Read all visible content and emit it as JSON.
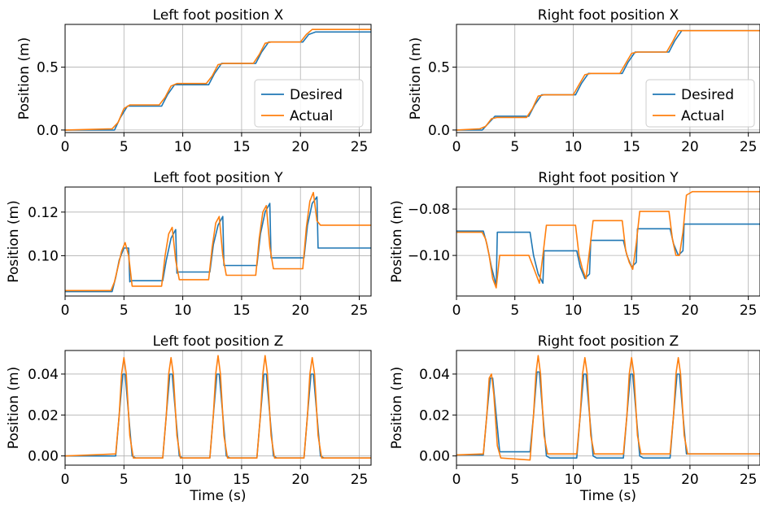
{
  "figure": {
    "series_names": [
      "Desired",
      "Actual"
    ],
    "series_colors": [
      "#1f77b4",
      "#ff7f0e"
    ]
  },
  "chart_data": [
    {
      "type": "line",
      "title": "Left foot position X",
      "ylabel": "Position (m)",
      "xlabel": "",
      "xlim": [
        0,
        26
      ],
      "ylim": [
        -0.02,
        0.84
      ],
      "xticks": [
        "0",
        "5",
        "10",
        "15",
        "20",
        "25"
      ],
      "xtick_values": [
        0,
        5,
        10,
        15,
        20,
        25
      ],
      "yticks": [
        "0.0",
        "0.5"
      ],
      "ytick_values": [
        0.0,
        0.5
      ],
      "grid": true,
      "legend": "center-right",
      "series": [
        {
          "name": "Desired",
          "color": "#1f77b4",
          "x": [
            0,
            4.2,
            4.7,
            5.3,
            8.2,
            8.7,
            9.3,
            12.2,
            12.7,
            13.3,
            16.2,
            16.7,
            17.3,
            20.2,
            20.7,
            21.3,
            26
          ],
          "y": [
            0,
            0,
            0.1,
            0.19,
            0.19,
            0.28,
            0.36,
            0.36,
            0.45,
            0.53,
            0.53,
            0.62,
            0.7,
            0.7,
            0.76,
            0.78,
            0.78
          ]
        },
        {
          "name": "Actual",
          "color": "#ff7f0e",
          "x": [
            0,
            4.0,
            4.5,
            5.0,
            5.5,
            8.0,
            8.5,
            9.0,
            9.5,
            12.0,
            12.5,
            13.0,
            13.5,
            16.0,
            16.5,
            17.0,
            17.5,
            20.0,
            20.5,
            21.0,
            21.5,
            26
          ],
          "y": [
            0,
            0.01,
            0.06,
            0.17,
            0.2,
            0.2,
            0.26,
            0.35,
            0.37,
            0.37,
            0.43,
            0.52,
            0.53,
            0.53,
            0.6,
            0.69,
            0.7,
            0.7,
            0.76,
            0.8,
            0.8,
            0.8
          ]
        }
      ]
    },
    {
      "type": "line",
      "title": "Right foot position X",
      "ylabel": "Position (m)",
      "xlabel": "",
      "xlim": [
        0,
        26
      ],
      "ylim": [
        -0.02,
        0.84
      ],
      "xticks": [
        "0",
        "5",
        "10",
        "15",
        "20",
        "25"
      ],
      "xtick_values": [
        0,
        5,
        10,
        15,
        20,
        25
      ],
      "yticks": [
        "0.0",
        "0.5"
      ],
      "ytick_values": [
        0.0,
        0.5
      ],
      "grid": true,
      "legend": "center-right",
      "series": [
        {
          "name": "Desired",
          "color": "#1f77b4",
          "x": [
            0,
            2.2,
            2.7,
            3.3,
            6.2,
            6.7,
            7.3,
            10.2,
            10.7,
            11.3,
            14.2,
            14.7,
            15.3,
            18.2,
            18.7,
            19.3,
            26
          ],
          "y": [
            0,
            0,
            0.05,
            0.11,
            0.11,
            0.2,
            0.28,
            0.28,
            0.37,
            0.45,
            0.45,
            0.54,
            0.62,
            0.62,
            0.71,
            0.79,
            0.79
          ]
        },
        {
          "name": "Actual",
          "color": "#ff7f0e",
          "x": [
            0,
            2.0,
            2.5,
            3.0,
            3.5,
            6.0,
            6.5,
            7.0,
            7.5,
            10.0,
            10.5,
            11.0,
            11.5,
            14.0,
            14.5,
            15.0,
            15.5,
            18.0,
            18.5,
            19.0,
            19.5,
            26
          ],
          "y": [
            0,
            0.01,
            0.03,
            0.09,
            0.1,
            0.1,
            0.17,
            0.27,
            0.28,
            0.28,
            0.36,
            0.44,
            0.45,
            0.45,
            0.53,
            0.61,
            0.62,
            0.62,
            0.7,
            0.79,
            0.79,
            0.79
          ]
        }
      ]
    },
    {
      "type": "line",
      "title": "Left foot position Y",
      "ylabel": "Position (m)",
      "xlabel": "",
      "xlim": [
        0,
        26
      ],
      "ylim": [
        0.0815,
        0.1315
      ],
      "xticks": [
        "0",
        "5",
        "10",
        "15",
        "20",
        "25"
      ],
      "xtick_values": [
        0,
        5,
        10,
        15,
        20,
        25
      ],
      "yticks": [
        "0.10",
        "0.12"
      ],
      "ytick_values": [
        0.1,
        0.12
      ],
      "grid": true,
      "legend": "none",
      "series": [
        {
          "name": "Desired",
          "color": "#1f77b4",
          "x": [
            0,
            4.0,
            4.3,
            4.6,
            5.0,
            5.4,
            5.5,
            5.6,
            8.3,
            8.6,
            9.0,
            9.4,
            9.5,
            9.6,
            12.3,
            12.6,
            13.0,
            13.4,
            13.5,
            13.6,
            16.3,
            16.6,
            17.0,
            17.4,
            17.5,
            17.6,
            20.3,
            20.6,
            21.0,
            21.4,
            21.5,
            21.6,
            26
          ],
          "y": [
            0.0835,
            0.0835,
            0.09,
            0.098,
            0.1035,
            0.1035,
            0.088,
            0.0885,
            0.0885,
            0.098,
            0.108,
            0.112,
            0.092,
            0.0925,
            0.0925,
            0.105,
            0.114,
            0.118,
            0.0955,
            0.0955,
            0.0955,
            0.11,
            0.12,
            0.124,
            0.099,
            0.099,
            0.099,
            0.114,
            0.124,
            0.127,
            0.1035,
            0.1035,
            0.1035
          ]
        },
        {
          "name": "Actual",
          "color": "#ff7f0e",
          "x": [
            0,
            3.9,
            4.2,
            4.5,
            4.8,
            5.1,
            5.4,
            5.7,
            8.2,
            8.5,
            8.8,
            9.1,
            9.4,
            9.7,
            12.2,
            12.5,
            12.8,
            13.1,
            13.4,
            13.7,
            16.2,
            16.5,
            16.8,
            17.1,
            17.4,
            17.7,
            20.2,
            20.5,
            20.8,
            21.1,
            21.4,
            21.7,
            26
          ],
          "y": [
            0.084,
            0.084,
            0.088,
            0.095,
            0.102,
            0.106,
            0.1,
            0.086,
            0.086,
            0.1,
            0.11,
            0.113,
            0.098,
            0.089,
            0.089,
            0.104,
            0.115,
            0.118,
            0.1,
            0.091,
            0.091,
            0.108,
            0.12,
            0.123,
            0.104,
            0.094,
            0.094,
            0.113,
            0.125,
            0.129,
            0.116,
            0.114,
            0.114
          ]
        }
      ]
    },
    {
      "type": "line",
      "title": "Right foot position Y",
      "ylabel": "Position (m)",
      "xlabel": "",
      "xlim": [
        0,
        26
      ],
      "ylim": [
        -0.1175,
        -0.0705
      ],
      "xticks": [
        "0",
        "5",
        "10",
        "15",
        "20",
        "25"
      ],
      "xtick_values": [
        0,
        5,
        10,
        15,
        20,
        25
      ],
      "yticks": [
        "−0.08",
        "−0.10"
      ],
      "ytick_values": [
        -0.08,
        -0.1
      ],
      "grid": true,
      "legend": "none",
      "series": [
        {
          "name": "Desired",
          "color": "#1f77b4",
          "x": [
            0,
            2.3,
            2.6,
            3.0,
            3.4,
            3.5,
            3.6,
            6.3,
            6.6,
            7.0,
            7.4,
            7.5,
            7.6,
            10.3,
            10.6,
            11.0,
            11.4,
            11.5,
            11.6,
            14.3,
            14.6,
            15.0,
            15.4,
            15.5,
            15.6,
            18.3,
            18.6,
            19.0,
            19.4,
            19.5,
            19.6,
            26
          ],
          "y": [
            -0.0895,
            -0.0895,
            -0.095,
            -0.105,
            -0.113,
            -0.09,
            -0.09,
            -0.09,
            -0.1,
            -0.108,
            -0.112,
            -0.098,
            -0.098,
            -0.098,
            -0.105,
            -0.11,
            -0.108,
            -0.0935,
            -0.0935,
            -0.0935,
            -0.1,
            -0.105,
            -0.103,
            -0.0885,
            -0.0885,
            -0.0885,
            -0.095,
            -0.1,
            -0.098,
            -0.0865,
            -0.0865,
            -0.0865
          ]
        },
        {
          "name": "Actual",
          "color": "#ff7f0e",
          "x": [
            0,
            2.2,
            2.5,
            2.8,
            3.1,
            3.4,
            3.7,
            6.2,
            6.5,
            6.8,
            7.1,
            7.4,
            7.7,
            10.2,
            10.5,
            10.8,
            11.1,
            11.4,
            11.7,
            14.2,
            14.5,
            14.8,
            15.1,
            15.4,
            15.7,
            18.2,
            18.5,
            18.8,
            19.1,
            19.4,
            19.7,
            20.2,
            26
          ],
          "y": [
            -0.09,
            -0.09,
            -0.093,
            -0.1,
            -0.11,
            -0.114,
            -0.1,
            -0.1,
            -0.104,
            -0.108,
            -0.112,
            -0.1,
            -0.087,
            -0.087,
            -0.1,
            -0.106,
            -0.11,
            -0.098,
            -0.085,
            -0.085,
            -0.098,
            -0.103,
            -0.106,
            -0.095,
            -0.081,
            -0.081,
            -0.093,
            -0.1,
            -0.1,
            -0.09,
            -0.074,
            -0.0725,
            -0.0725
          ]
        }
      ]
    },
    {
      "type": "line",
      "title": "Left foot position Z",
      "ylabel": "Position (m)",
      "xlabel": "Time (s)",
      "xlim": [
        0,
        26
      ],
      "ylim": [
        -0.0045,
        0.0515
      ],
      "xticks": [
        "0",
        "5",
        "10",
        "15",
        "20",
        "25"
      ],
      "xtick_values": [
        0,
        5,
        10,
        15,
        20,
        25
      ],
      "yticks": [
        "0.00",
        "0.02",
        "0.04"
      ],
      "ytick_values": [
        0.0,
        0.02,
        0.04
      ],
      "grid": true,
      "legend": "none",
      "series": [
        {
          "name": "Desired",
          "color": "#1f77b4",
          "x": [
            0,
            4.3,
            4.6,
            4.9,
            5.1,
            5.4,
            5.7,
            6.0,
            8.3,
            8.6,
            8.9,
            9.1,
            9.4,
            9.7,
            10.0,
            12.3,
            12.6,
            12.9,
            13.1,
            13.4,
            13.7,
            14.0,
            16.3,
            16.6,
            16.9,
            17.1,
            17.4,
            17.7,
            18.0,
            20.3,
            20.6,
            20.9,
            21.1,
            21.4,
            21.7,
            22.0,
            26
          ],
          "y": [
            0,
            0,
            0.02,
            0.04,
            0.04,
            0.02,
            0,
            -0.001,
            -0.001,
            0.02,
            0.04,
            0.04,
            0.02,
            0,
            -0.001,
            -0.001,
            0.02,
            0.04,
            0.04,
            0.02,
            0,
            -0.001,
            -0.001,
            0.02,
            0.04,
            0.04,
            0.02,
            0,
            -0.001,
            -0.001,
            0.02,
            0.04,
            0.04,
            0.02,
            0,
            -0.001,
            -0.001
          ]
        },
        {
          "name": "Actual",
          "color": "#ff7f0e",
          "x": [
            0,
            4.3,
            4.6,
            4.8,
            5.0,
            5.2,
            5.5,
            5.8,
            8.3,
            8.6,
            8.8,
            9.0,
            9.2,
            9.5,
            9.8,
            12.3,
            12.6,
            12.8,
            13.0,
            13.2,
            13.5,
            13.8,
            16.3,
            16.6,
            16.8,
            17.0,
            17.2,
            17.5,
            17.8,
            20.3,
            20.6,
            20.8,
            21.0,
            21.2,
            21.5,
            21.8,
            26
          ],
          "y": [
            0,
            0.001,
            0.02,
            0.04,
            0.048,
            0.04,
            0.01,
            -0.001,
            -0.001,
            0.02,
            0.04,
            0.048,
            0.04,
            0.01,
            -0.001,
            -0.001,
            0.02,
            0.04,
            0.049,
            0.04,
            0.01,
            -0.001,
            -0.001,
            0.02,
            0.04,
            0.049,
            0.04,
            0.01,
            -0.001,
            -0.001,
            0.02,
            0.04,
            0.048,
            0.04,
            0.01,
            -0.001,
            -0.001
          ]
        }
      ]
    },
    {
      "type": "line",
      "title": "Right foot position Z",
      "ylabel": "Position (m)",
      "xlabel": "Time (s)",
      "xlim": [
        0,
        26
      ],
      "ylim": [
        -0.0045,
        0.0515
      ],
      "xticks": [
        "0",
        "5",
        "10",
        "15",
        "20",
        "25"
      ],
      "xtick_values": [
        0,
        5,
        10,
        15,
        20,
        25
      ],
      "yticks": [
        "0.00",
        "0.02",
        "0.04"
      ],
      "ytick_values": [
        0.0,
        0.02,
        0.04
      ],
      "grid": true,
      "legend": "none",
      "series": [
        {
          "name": "Desired",
          "color": "#1f77b4",
          "x": [
            0,
            2.3,
            2.6,
            2.9,
            3.1,
            3.4,
            3.7,
            4.0,
            6.3,
            6.6,
            6.9,
            7.1,
            7.4,
            7.7,
            8.0,
            10.3,
            10.6,
            10.9,
            11.1,
            11.4,
            11.7,
            12.0,
            14.3,
            14.6,
            14.9,
            15.1,
            15.4,
            15.7,
            16.0,
            18.3,
            18.6,
            18.9,
            19.1,
            19.4,
            19.7,
            20.0,
            26
          ],
          "y": [
            0.0005,
            0.0005,
            0.02,
            0.038,
            0.038,
            0.02,
            0.002,
            0.002,
            0.002,
            0.02,
            0.041,
            0.041,
            0.02,
            0,
            -0.001,
            -0.001,
            0.02,
            0.04,
            0.04,
            0.02,
            0,
            -0.001,
            -0.001,
            0.02,
            0.04,
            0.04,
            0.02,
            0,
            -0.001,
            -0.001,
            0.02,
            0.04,
            0.04,
            0.02,
            0.001,
            0.001,
            0.001
          ]
        },
        {
          "name": "Actual",
          "color": "#ff7f0e",
          "x": [
            0,
            2.3,
            2.6,
            2.8,
            3.0,
            3.2,
            3.5,
            3.8,
            6.3,
            6.6,
            6.8,
            7.0,
            7.2,
            7.5,
            7.8,
            10.3,
            10.6,
            10.8,
            11.0,
            11.2,
            11.5,
            11.8,
            14.3,
            14.6,
            14.8,
            15.0,
            15.2,
            15.5,
            15.8,
            18.3,
            18.6,
            18.8,
            19.0,
            19.2,
            19.5,
            19.8,
            26
          ],
          "y": [
            0.0005,
            0.001,
            0.02,
            0.038,
            0.04,
            0.03,
            0.005,
            -0.001,
            -0.002,
            0.02,
            0.04,
            0.049,
            0.04,
            0.01,
            0.001,
            0.001,
            0.02,
            0.04,
            0.048,
            0.04,
            0.01,
            0.001,
            0.001,
            0.02,
            0.04,
            0.048,
            0.04,
            0.01,
            0.001,
            0.001,
            0.02,
            0.04,
            0.048,
            0.04,
            0.01,
            0.001,
            0.001
          ]
        }
      ]
    }
  ]
}
